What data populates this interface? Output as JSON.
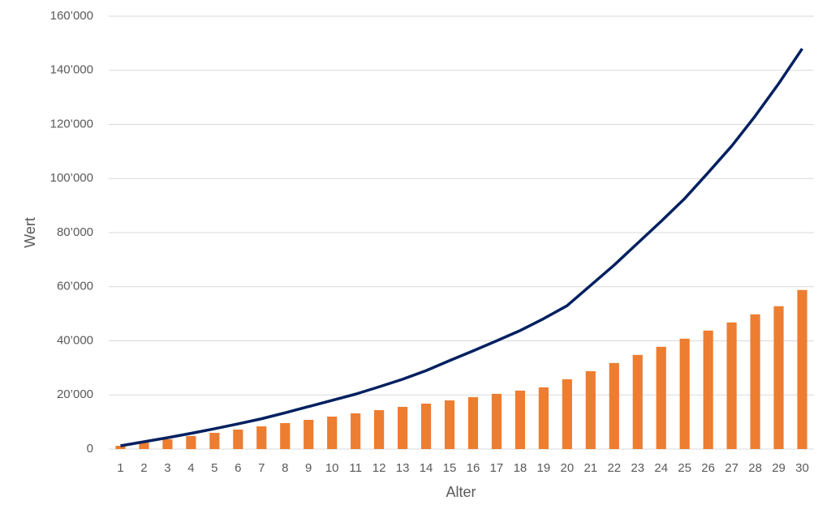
{
  "chart_data": {
    "type": "bar-line",
    "x_label": "Alter",
    "y_label": "Wert",
    "categories": [
      "1",
      "2",
      "3",
      "4",
      "5",
      "6",
      "7",
      "8",
      "9",
      "10",
      "11",
      "12",
      "13",
      "14",
      "15",
      "16",
      "17",
      "18",
      "19",
      "20",
      "21",
      "22",
      "23",
      "24",
      "25",
      "26",
      "27",
      "28",
      "29",
      "30"
    ],
    "series": [
      {
        "type": "bar",
        "color": "#ed7d31",
        "values": [
          1200,
          2400,
          3600,
          4800,
          6000,
          7200,
          8400,
          9600,
          10800,
          12000,
          13200,
          14400,
          15600,
          16800,
          18000,
          19200,
          20400,
          21600,
          22800,
          25800,
          28800,
          31800,
          34800,
          37800,
          40800,
          43800,
          46800,
          49800,
          52800,
          58800
        ]
      },
      {
        "type": "line",
        "color": "#002060",
        "values": [
          1200,
          2700,
          4200,
          5800,
          7500,
          9300,
          11200,
          13400,
          15700,
          18000,
          20300,
          23000,
          25800,
          29000,
          32700,
          36300,
          40000,
          43800,
          48200,
          53000,
          60500,
          68000,
          76100,
          84200,
          92600,
          102200,
          112000,
          123100,
          135100,
          148000
        ]
      }
    ],
    "ylim": [
      0,
      160000
    ],
    "yticks": [
      0,
      {
        "value": 20000,
        "label": "20’000"
      },
      {
        "value": 40000,
        "label": "40’000"
      },
      {
        "value": 60000,
        "label": "60’000"
      },
      {
        "value": 80000,
        "label": "80’000"
      },
      {
        "value": 100000,
        "label": "100’000"
      },
      {
        "value": 120000,
        "label": "120’000"
      },
      {
        "value": 140000,
        "label": "140’000"
      },
      {
        "value": 160000,
        "label": "160’000"
      }
    ],
    "grid": true
  }
}
